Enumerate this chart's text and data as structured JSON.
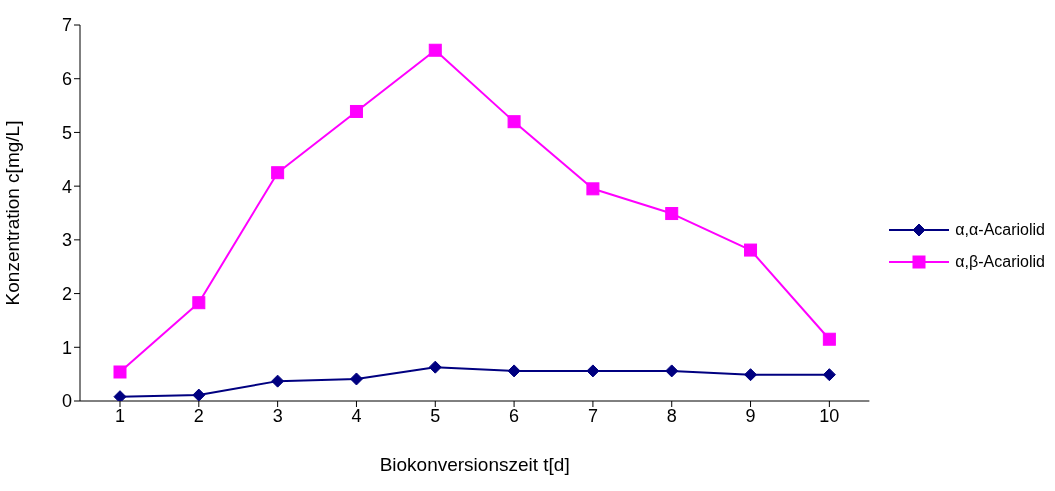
{
  "chart_data": {
    "type": "line",
    "xlabel": "Biokonversionszeit t[d]",
    "ylabel": "Konzentration c[mg/L]",
    "categories": [
      "1",
      "2",
      "3",
      "4",
      "5",
      "6",
      "7",
      "8",
      "9",
      "10"
    ],
    "series": [
      {
        "name": "α,α-Acariolid",
        "color": "#000080",
        "marker": "diamond",
        "values": [
          0.08,
          0.11,
          0.37,
          0.41,
          0.63,
          0.56,
          0.56,
          0.56,
          0.49,
          0.49
        ]
      },
      {
        "name": "α,β-Acariolid",
        "color": "#ff00ff",
        "marker": "square",
        "values": [
          0.54,
          1.83,
          4.25,
          5.39,
          6.53,
          5.2,
          3.95,
          3.49,
          2.81,
          1.15
        ]
      }
    ],
    "ylim": [
      0,
      7
    ],
    "yticks": [
      0,
      1,
      2,
      3,
      4,
      5,
      6,
      7
    ],
    "grid": false,
    "legend": "right",
    "line_style": "solid"
  }
}
